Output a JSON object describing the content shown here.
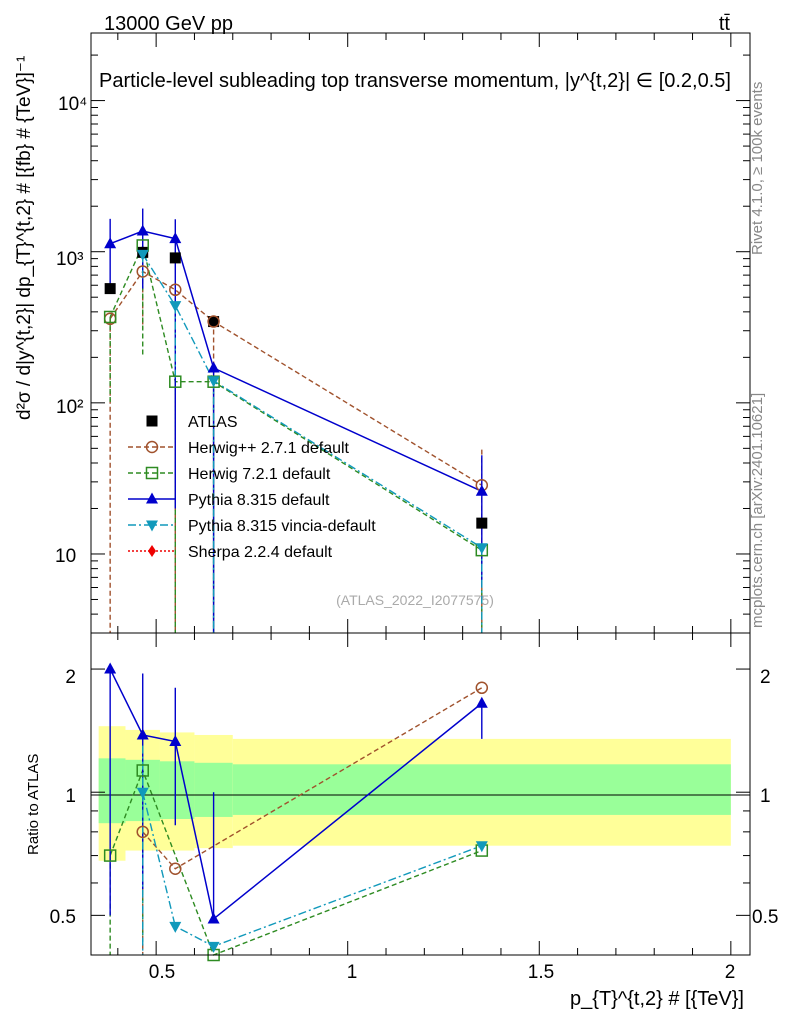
{
  "header": {
    "left": "13000 GeV pp",
    "right": "tt̄"
  },
  "side_labels": {
    "rivet": "Rivet 4.1.0, ≥ 100k events",
    "mcplots": "mcplots.cern.ch [arXiv:2401.10621]"
  },
  "colors": {
    "atlas": "#000000",
    "herwigpp": "#a0522d",
    "herwig7": "#2e8b22",
    "pythia": "#0000cc",
    "vincia": "#1199bb",
    "sherpa": "#ee0000",
    "band_outer": "#ffff99",
    "band_inner": "#99ff99"
  },
  "chart_data": [
    {
      "type": "line",
      "panel": "main",
      "title": "Particle-level subleading top transverse momentum, |y^{t,2}| ∈ [0.2,0.5]",
      "ylabel": "d²σ / d|y^{t,2}| dp_{T}^{t,2} # [{fb} # {TeV}]⁻¹",
      "yscale": "log",
      "ylim": [
        3.0,
        28000
      ],
      "xlim": [
        0.33,
        2.05
      ],
      "yticks": [
        "10",
        "10²",
        "10³",
        "10⁴"
      ],
      "watermark": "(ATLAS_2022_I2077575)",
      "legend_position": "left-middle",
      "x": [
        0.38,
        0.465,
        0.55,
        0.65,
        1.35
      ],
      "series": [
        {
          "name": "ATLAS",
          "key": "atlas",
          "style": "data",
          "marker": "square",
          "values": [
            570,
            990,
            910,
            345,
            16
          ]
        },
        {
          "name": "Herwig++ 2.7.1 default",
          "key": "herwigpp",
          "style": "dash",
          "marker": "circle-open",
          "values": [
            360,
            740,
            560,
            345,
            28.5
          ],
          "err_lo": [
            360,
            430,
            560,
            345,
            28
          ],
          "err_hi": [
            0,
            0,
            0,
            0,
            49
          ]
        },
        {
          "name": "Herwig 7.2.1 default",
          "key": "herwig7",
          "style": "dash",
          "marker": "square-open",
          "values": [
            370,
            1100,
            138,
            138,
            10.6
          ],
          "err_lo": [
            270,
            900,
            138,
            138,
            10.5
          ],
          "err_hi": [
            0,
            0,
            0,
            0,
            0
          ]
        },
        {
          "name": "Pythia 8.315 default",
          "key": "pythia",
          "style": "solid",
          "marker": "triangle-up",
          "values": [
            1130,
            1370,
            1220,
            170,
            26
          ],
          "err_lo": [
            600,
            800,
            1200,
            170,
            20
          ],
          "err_hi": [
            1650,
            1930,
            1640,
            0,
            45
          ]
        },
        {
          "name": "Pythia 8.315 vincia-default",
          "key": "vincia",
          "style": "dashdot",
          "marker": "triangle-down",
          "values": [
            null,
            960,
            440,
            140,
            11
          ],
          "err_lo": [
            0,
            300,
            300,
            140,
            10.9
          ],
          "err_hi": [
            0,
            0,
            0,
            0,
            0
          ]
        },
        {
          "name": "Sherpa 2.2.4 default",
          "key": "sherpa",
          "style": "dotted",
          "marker": "diamond",
          "values": [
            null,
            null,
            null,
            null,
            null
          ]
        }
      ]
    },
    {
      "type": "line",
      "panel": "ratio",
      "ylabel": "Ratio to ATLAS",
      "xlabel": "p_{T}^{t,2} # [{TeV}]",
      "yscale": "log",
      "ylim": [
        0.4,
        2.45
      ],
      "xlim": [
        0.33,
        2.05
      ],
      "yticks": [
        "0.5",
        "1",
        "2"
      ],
      "xticks": [
        "0.5",
        "1",
        "1.5",
        "2"
      ],
      "bands": {
        "edges": [
          0.35,
          0.42,
          0.51,
          0.6,
          0.7,
          2.0
        ],
        "outer_lo": [
          0.68,
          0.72,
          0.72,
          0.73,
          0.74
        ],
        "outer_hi": [
          1.45,
          1.42,
          1.4,
          1.38,
          1.35
        ],
        "inner_lo": [
          0.84,
          0.85,
          0.86,
          0.87,
          0.88
        ],
        "inner_hi": [
          1.21,
          1.2,
          1.19,
          1.18,
          1.17
        ]
      },
      "x": [
        0.38,
        0.465,
        0.55,
        0.65,
        1.35
      ],
      "series": [
        {
          "name": "Herwig++ 2.7.1 default",
          "key": "herwigpp",
          "style": "dash",
          "marker": "circle-open",
          "values": [
            null,
            0.8,
            0.65,
            null,
            1.8
          ],
          "err_lo": [
            0,
            0.4,
            0,
            0,
            0
          ],
          "err_hi": [
            0,
            0,
            0,
            0,
            0
          ]
        },
        {
          "name": "Herwig 7.2.1 default",
          "key": "herwig7",
          "style": "dash",
          "marker": "square-open",
          "values": [
            0.7,
            1.13,
            null,
            0.4,
            0.72
          ],
          "err_lo": [
            0.3,
            0.7,
            0,
            0,
            0
          ],
          "err_hi": [
            0,
            0,
            0,
            0,
            0
          ]
        },
        {
          "name": "Pythia 8.315 default",
          "key": "pythia",
          "style": "solid",
          "marker": "triangle-up",
          "values": [
            2.0,
            1.38,
            1.33,
            0.49,
            1.65
          ],
          "err_lo": [
            1.5,
            0.8,
            0.5,
            0,
            0.3
          ],
          "err_hi": [
            0,
            1.95,
            1.8,
            1.0,
            0
          ]
        },
        {
          "name": "Pythia 8.315 vincia-default",
          "key": "vincia",
          "style": "dashdot",
          "marker": "triangle-down",
          "values": [
            null,
            1.0,
            0.47,
            0.42,
            0.74
          ],
          "err_lo": [
            0,
            0.7,
            0,
            0,
            0
          ],
          "err_hi": [
            0,
            1.3,
            0,
            0,
            0
          ]
        }
      ]
    }
  ]
}
